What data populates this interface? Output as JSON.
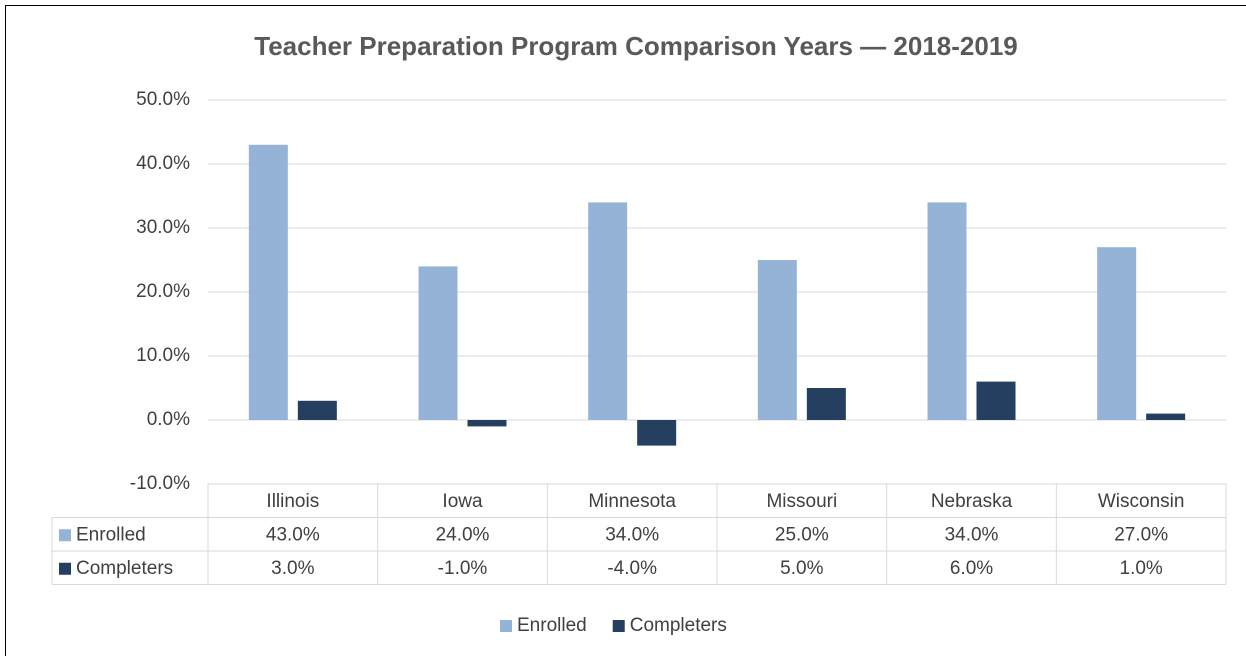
{
  "chart_data": {
    "type": "bar",
    "title": "Teacher Preparation Program Comparison Years — 2018-2019",
    "categories": [
      "Illinois",
      "Iowa",
      "Minnesota",
      "Missouri",
      "Nebraska",
      "Wisconsin"
    ],
    "series": [
      {
        "name": "Enrolled",
        "color": "#95b3d7",
        "values": [
          43,
          24,
          34,
          25,
          34,
          27
        ],
        "value_labels": [
          "43.0%",
          "24.0%",
          "34.0%",
          "25.0%",
          "34.0%",
          "27.0%"
        ]
      },
      {
        "name": "Completers",
        "color": "#243f60",
        "values": [
          3,
          -1,
          -4,
          5,
          6,
          1
        ],
        "value_labels": [
          "3.0%",
          "-1.0%",
          "-4.0%",
          "5.0%",
          "6.0%",
          "1.0%"
        ]
      }
    ],
    "ylim": [
      -10,
      50
    ],
    "yticks": [
      {
        "value": -10,
        "label": "-10.0%"
      },
      {
        "value": 0,
        "label": "0.0%"
      },
      {
        "value": 10,
        "label": "10.0%"
      },
      {
        "value": 20,
        "label": "20.0%"
      },
      {
        "value": 30,
        "label": "30.0%"
      },
      {
        "value": 40,
        "label": "40.0%"
      },
      {
        "value": 50,
        "label": "50.0%"
      }
    ],
    "grid": true,
    "legend": "bottom"
  }
}
